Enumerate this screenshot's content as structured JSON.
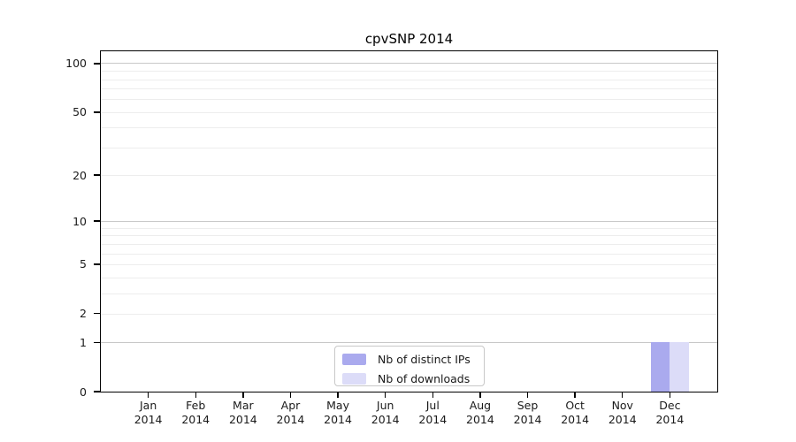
{
  "chart_data": {
    "type": "bar",
    "title": "cpvSNP 2014",
    "categories": [
      "Jan",
      "Feb",
      "Mar",
      "Apr",
      "May",
      "Jun",
      "Jul",
      "Aug",
      "Sep",
      "Oct",
      "Nov",
      "Dec"
    ],
    "x_tick_year": "2014",
    "series": [
      {
        "name": "Nb of distinct IPs",
        "color": "#aaaaee",
        "values": [
          0,
          0,
          0,
          0,
          0,
          0,
          0,
          0,
          0,
          0,
          0,
          1
        ]
      },
      {
        "name": "Nb of downloads",
        "color": "#dcdcf8",
        "values": [
          0,
          0,
          0,
          0,
          0,
          0,
          0,
          0,
          0,
          0,
          0,
          1
        ]
      }
    ],
    "y_scale": "log1p",
    "ylim": [
      0,
      119
    ],
    "y_ticks": [
      0,
      1,
      2,
      5,
      10,
      20,
      50,
      100
    ],
    "y_gridlines_major": [
      1,
      10,
      100
    ],
    "y_gridlines_minor": [
      2,
      3,
      4,
      5,
      6,
      7,
      8,
      9,
      20,
      30,
      40,
      50,
      60,
      70,
      80,
      90
    ],
    "grid": true,
    "legend_position": "bottom-center",
    "colors": {
      "major_grid": "#c8c8c8",
      "minor_grid": "#ededed",
      "axis_frame": "#000000",
      "text": "#1a1a1a",
      "background": "#ffffff"
    }
  }
}
